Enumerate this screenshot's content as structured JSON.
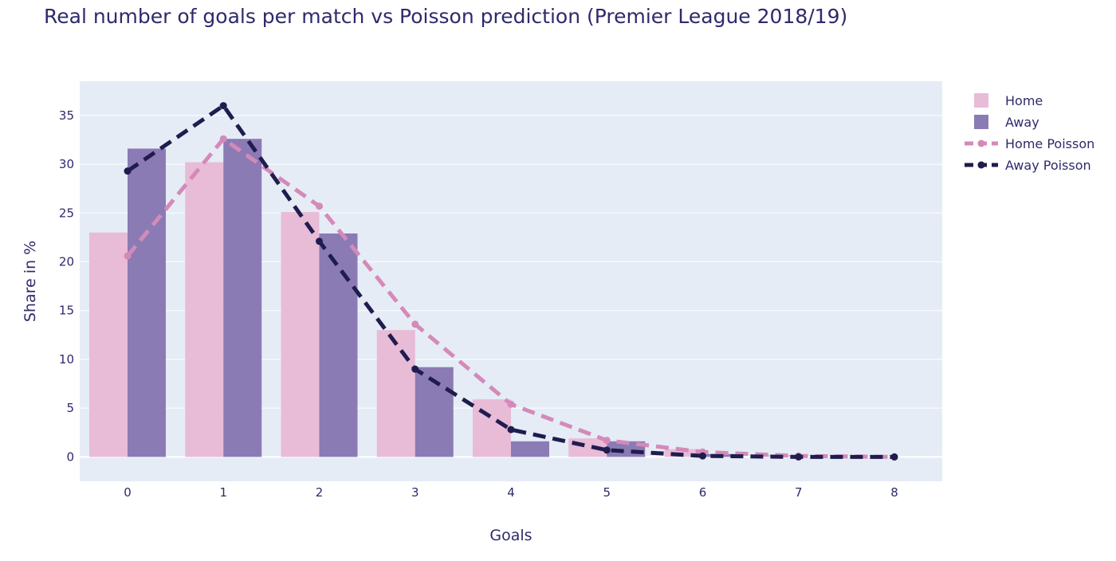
{
  "chart_data": {
    "type": "bar",
    "title": "Real number of goals per match vs Poisson prediction (Premier League 2018/19)",
    "xlabel": "Goals",
    "ylabel": "Share in %",
    "categories": [
      "0",
      "1",
      "2",
      "3",
      "4",
      "5",
      "6",
      "7",
      "8"
    ],
    "ylim": [
      -2.5,
      38.5
    ],
    "yticks": [
      0,
      5,
      10,
      15,
      20,
      25,
      30,
      35
    ],
    "grid": true,
    "legend_position": "top-right",
    "bars": [
      {
        "name": "Home",
        "color": "#e8bbd7",
        "values": [
          23.0,
          30.2,
          25.1,
          13.0,
          5.9,
          1.9,
          0.8,
          0.2,
          0.0
        ]
      },
      {
        "name": "Away",
        "color": "#8b7bb5",
        "values": [
          31.6,
          32.6,
          22.9,
          9.2,
          1.6,
          1.6,
          0.3,
          0.0,
          0.0
        ]
      }
    ],
    "lines": [
      {
        "name": "Home Poisson",
        "color": "#d48ab9",
        "values": [
          20.6,
          32.6,
          25.7,
          13.6,
          5.4,
          1.7,
          0.5,
          0.1,
          0.0
        ]
      },
      {
        "name": "Away Poisson",
        "color": "#201c4e",
        "values": [
          29.3,
          36.0,
          22.1,
          9.0,
          2.8,
          0.7,
          0.1,
          0.0,
          0.0
        ]
      }
    ]
  }
}
